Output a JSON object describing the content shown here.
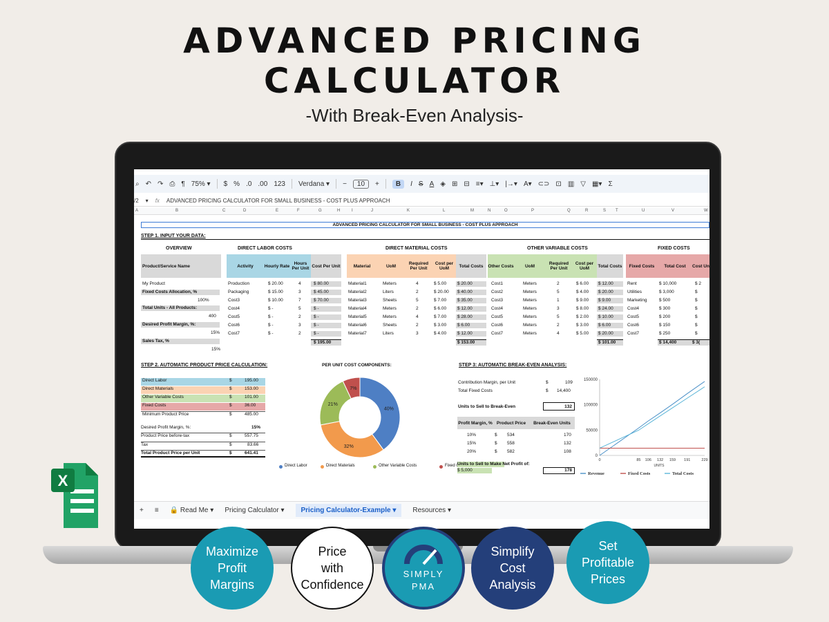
{
  "hero": {
    "title_line1": "ADVANCED PRICING",
    "title_line2": "CALCULATOR",
    "subtitle": "-With Break-Even Analysis-"
  },
  "toolbar": {
    "zoom": "75%",
    "currency": "$",
    "percent": "%",
    "dec_less": ".0",
    "dec_more": ".00",
    "number_format": "123",
    "font": "Verdana",
    "font_size": "10",
    "bold": "B",
    "italic": "I",
    "sigma": "Σ"
  },
  "formula_bar": {
    "cell_ref": "/2",
    "fx": "fx",
    "formula": "ADVANCED PRICING CALCULATOR FOR SMALL BUSINESS - COST PLUS APPROACH"
  },
  "columns": [
    "A",
    "B",
    "C",
    "D",
    "E",
    "F",
    "G",
    "H",
    "I",
    "J",
    "K",
    "L",
    "M",
    "N",
    "O",
    "P",
    "Q",
    "R",
    "S",
    "T",
    "U",
    "V",
    "W"
  ],
  "sheet": {
    "banner": "ADVANCED PRICING CALCULATOR FOR SMALL BUSINESS - COST PLUS APPROACH",
    "step1": "STEP 1. INPUT YOUR DATA:",
    "sections": {
      "overview": "OVERVIEW",
      "labor": "DIRECT LABOR COSTS",
      "material": "DIRECT MATERIAL COSTS",
      "variable": "OTHER VARIABLE COSTS",
      "fixed": "FIXED COSTS"
    },
    "headers": {
      "product": "Product/Service Name",
      "activity": "Activity",
      "hourly": "Hourly Rate",
      "hours": "Hours Per Unit",
      "cost_per_unit": "Cost Per Unit",
      "material": "Material",
      "uom": "UoM",
      "required": "Required Per Unit",
      "cost_per_uom": "Cost per UoM",
      "total_costs": "Total Costs",
      "other_costs": "Other Costs",
      "cost_per_uom2": "Cost per UoM",
      "fixed_costs": "Fixed Costs",
      "total_cost": "Total Cost",
      "cost_unit": "Cost Un"
    },
    "overview": [
      "My Product",
      "Fixed Costs Allocation, %",
      "100%",
      "Total Units - All Products:",
      "400",
      "Desired Profit Margin, %:",
      "15%",
      "Sales Tax, %",
      "15%"
    ],
    "labor": [
      {
        "a": "Production",
        "r": "$  20.00",
        "h": "4",
        "c": "$     80.00"
      },
      {
        "a": "Packaging",
        "r": "$  15.00",
        "h": "3",
        "c": "$     45.00"
      },
      {
        "a": "Cost3",
        "r": "$  10.00",
        "h": "7",
        "c": "$     70.00"
      },
      {
        "a": "Cost4",
        "r": "$        -",
        "h": "5",
        "c": "$           -"
      },
      {
        "a": "Cost5",
        "r": "$        -",
        "h": "2",
        "c": "$           -"
      },
      {
        "a": "Cost6",
        "r": "$        -",
        "h": "3",
        "c": "$           -"
      },
      {
        "a": "Cost7",
        "r": "$        -",
        "h": "2",
        "c": "$           -"
      }
    ],
    "labor_total": "$  195.00",
    "material": [
      {
        "m": "Material1",
        "u": "Meters",
        "q": "4",
        "p": "$   5.00",
        "t": "$     20.00"
      },
      {
        "m": "Material2",
        "u": "Liters",
        "q": "2",
        "p": "$ 20.00",
        "t": "$     40.00"
      },
      {
        "m": "Material3",
        "u": "Sheets",
        "q": "5",
        "p": "$   7.00",
        "t": "$     35.00"
      },
      {
        "m": "Material4",
        "u": "Meters",
        "q": "2",
        "p": "$   6.00",
        "t": "$     12.00"
      },
      {
        "m": "Material5",
        "u": "Meters",
        "q": "4",
        "p": "$   7.00",
        "t": "$     28.00"
      },
      {
        "m": "Material6",
        "u": "Sheets",
        "q": "2",
        "p": "$   3.00",
        "t": "$       6.00"
      },
      {
        "m": "Material7",
        "u": "Liters",
        "q": "3",
        "p": "$   4.00",
        "t": "$     12.00"
      }
    ],
    "material_total": "$  153.00",
    "variable": [
      {
        "o": "Cost1",
        "u": "Meters",
        "q": "2",
        "p": "$ 6.00",
        "t": "$   12.00"
      },
      {
        "o": "Cost2",
        "u": "Meters",
        "q": "5",
        "p": "$ 4.00",
        "t": "$   20.00"
      },
      {
        "o": "Cost3",
        "u": "Meters",
        "q": "1",
        "p": "$ 9.00",
        "t": "$     9.00"
      },
      {
        "o": "Cost4",
        "u": "Meters",
        "q": "3",
        "p": "$ 8.00",
        "t": "$   24.00"
      },
      {
        "o": "Cost5",
        "u": "Meters",
        "q": "5",
        "p": "$ 2.00",
        "t": "$   10.00"
      },
      {
        "o": "Cost6",
        "u": "Meters",
        "q": "2",
        "p": "$ 3.00",
        "t": "$     6.00"
      },
      {
        "o": "Cost7",
        "u": "Meters",
        "q": "4",
        "p": "$ 5.00",
        "t": "$   20.00"
      }
    ],
    "variable_total": "$ 101.00",
    "fixed": [
      {
        "f": "Rent",
        "t": "$      10,000",
        "c": "$    2"
      },
      {
        "f": "Utilities",
        "t": "$        3,000",
        "c": "$"
      },
      {
        "f": "Marketing",
        "t": "$           500",
        "c": "$"
      },
      {
        "f": "Cost4",
        "t": "$           300",
        "c": "$"
      },
      {
        "f": "Cost5",
        "t": "$           200",
        "c": "$"
      },
      {
        "f": "Cost6",
        "t": "$           150",
        "c": "$"
      },
      {
        "f": "Cost7",
        "t": "$           250",
        "c": "$"
      }
    ],
    "fixed_total": "$     14,400",
    "fixed_total_unit": "$   3(",
    "step2": "STEP 2. AUTOMATIC PRODUCT PRICE CALCULATION:",
    "price_rows": [
      {
        "l": "Direct Labor",
        "v": "195.00",
        "cls": "blue"
      },
      {
        "l": "Direct Materials",
        "v": "153.00",
        "cls": "orange"
      },
      {
        "l": "Other Variable Costs",
        "v": "101.00",
        "cls": "green"
      },
      {
        "l": "Fixed Costs",
        "v": "36.00",
        "cls": "red"
      },
      {
        "l": "Minimum Product Price",
        "v": "485.00",
        "cls": ""
      }
    ],
    "margin_label": "Desired Profit Margin, %:",
    "margin_value": "15%",
    "before_tax_label": "Product Price before-tax",
    "before_tax_value": "557.75",
    "tax_label": "Tax",
    "tax_value": "83.66",
    "total_label": "Total Product Price per Unit",
    "total_value": "641.41",
    "dollar": "$",
    "pie_title": "PER UNIT COST COMPONENTS:",
    "step3": "STEP 3: AUTOMATIC BREAK-EVEN ANALYSIS:",
    "be": {
      "cm_label": "Contribution Margin, per Unit",
      "cm_value": "109",
      "tfc_label": "Total Fixed Costs",
      "tfc_value": "14,400",
      "units_label": "Units to Sell to Break-Even",
      "units_value": "132",
      "col1": "Profit Margin, %",
      "col2": "Product Price",
      "col3": "Break-Even Units",
      "rows": [
        {
          "m": "10%",
          "p": "534",
          "u": "170"
        },
        {
          "m": "15%",
          "p": "558",
          "u": "132"
        },
        {
          "m": "20%",
          "p": "582",
          "u": "108"
        }
      ],
      "net_label": "Units to Sell to Make Net Profit of:",
      "net_amount": "$   5,000",
      "net_units": "178"
    }
  },
  "tabs": {
    "add": "+",
    "menu": "≡",
    "read_me": "Read Me",
    "pricing": "Pricing Calculator",
    "example": "Pricing Calculator-Example",
    "resources": "Resources"
  },
  "badges": {
    "b1": "Maximize\nProfit\nMargins",
    "b2": "Price\nwith\nConfidence",
    "b3": "SIMPLY\nPMA",
    "b4": "Simplify\nCost\nAnalysis",
    "b5": "Set\nProfitable\nPrices"
  },
  "colors": {
    "labor": "#4e7fc4",
    "materials": "#f29a4c",
    "variable": "#9cbb58",
    "fixed": "#c0504d",
    "revenue": "#4a90c8",
    "fixed_line": "#c0504d",
    "total_line": "#5bb5d8",
    "teal": "#1a9bb3",
    "navy": "#243f7a"
  },
  "chart_data": [
    {
      "type": "pie",
      "title": "PER UNIT COST COMPONENTS:",
      "categories": [
        "Direct Labor",
        "Direct Materials",
        "Other Variable Costs",
        "Fixed Costs"
      ],
      "values": [
        40,
        32,
        21,
        7
      ],
      "labels": [
        "40%",
        "32%",
        "21%",
        "7%"
      ]
    },
    {
      "type": "line",
      "x": [
        0,
        85,
        106,
        132,
        159,
        191,
        229
      ],
      "xlabel": "UNITS",
      "ylim": [
        0,
        150000
      ],
      "yticks": [
        "150000",
        "100000",
        "50000",
        "0"
      ],
      "series": [
        {
          "name": "Revenue",
          "values": [
            0,
            54000,
            68000,
            84000,
            101000,
            122000,
            146000
          ]
        },
        {
          "name": "Fixed Costs",
          "values": [
            14400,
            14400,
            14400,
            14400,
            14400,
            14400,
            14400
          ]
        },
        {
          "name": "Total Costs",
          "values": [
            14400,
            49800,
            62500,
            78000,
            94000,
            113000,
            135500
          ]
        }
      ]
    }
  ]
}
